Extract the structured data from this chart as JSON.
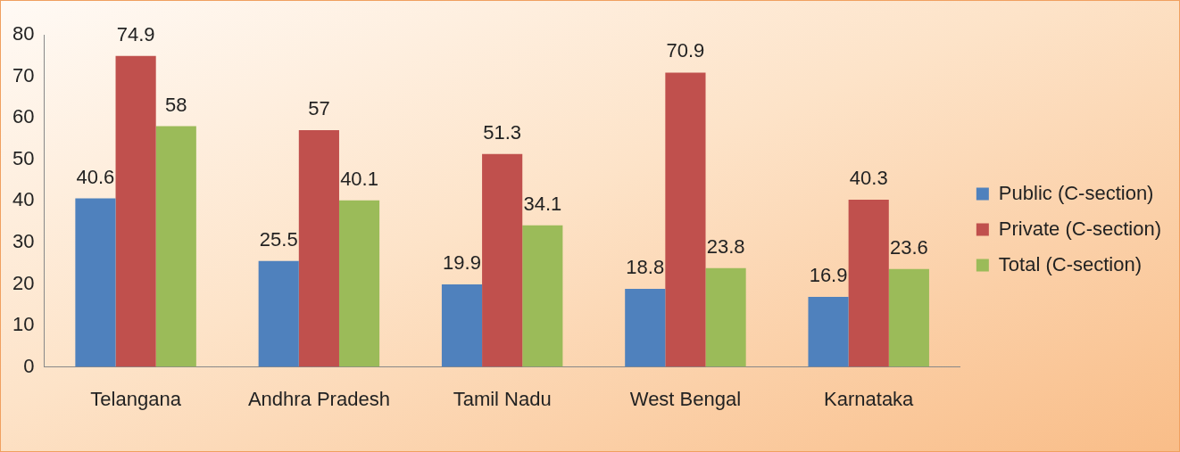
{
  "chart_data": {
    "type": "bar",
    "categories": [
      "Telangana",
      "Andhra Pradesh",
      "Tamil Nadu",
      "West Bengal",
      "Karnataka"
    ],
    "series": [
      {
        "name": "Public (C-section)",
        "color": "#4f81bd",
        "values": [
          40.6,
          25.5,
          19.9,
          18.8,
          16.9
        ]
      },
      {
        "name": "Private (C-section)",
        "color": "#c0504d",
        "values": [
          74.9,
          57,
          51.3,
          70.9,
          40.3
        ]
      },
      {
        "name": "Total (C-section)",
        "color": "#9bbb59",
        "values": [
          58,
          40.1,
          34.1,
          23.8,
          23.6
        ]
      }
    ],
    "ylim": [
      0,
      80
    ],
    "yticks": [
      0,
      10,
      20,
      30,
      40,
      50,
      60,
      70,
      80
    ],
    "grid": false,
    "legend": "right",
    "data_labels": true
  }
}
